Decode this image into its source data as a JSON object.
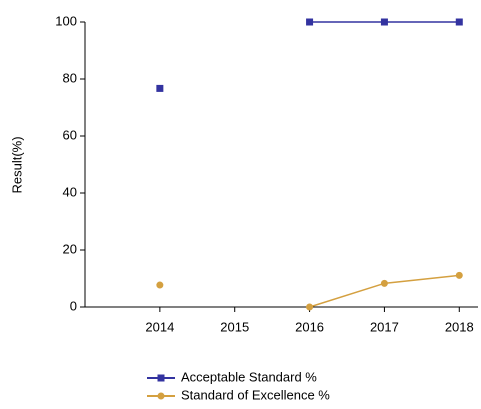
{
  "chart_data": {
    "type": "line",
    "x": [
      2014,
      2015,
      2016,
      2017,
      2018
    ],
    "xlim": [
      2013,
      2018.25
    ],
    "xticks": [
      2014,
      2015,
      2016,
      2017,
      2018
    ],
    "ylim": [
      0,
      100
    ],
    "yticks": [
      0,
      20,
      40,
      60,
      80,
      100
    ],
    "ylabel": "Result(%)",
    "grid": false,
    "legend": "bottom",
    "series": [
      {
        "name": "Acceptable Standard %",
        "color": "#3333a0",
        "marker": "square",
        "values": [
          76.7,
          null,
          100,
          100,
          100
        ]
      },
      {
        "name": "Standard of Excellence %",
        "color": "#d4a040",
        "marker": "circle",
        "values": [
          7.7,
          null,
          0,
          8.3,
          11.1
        ]
      }
    ]
  }
}
